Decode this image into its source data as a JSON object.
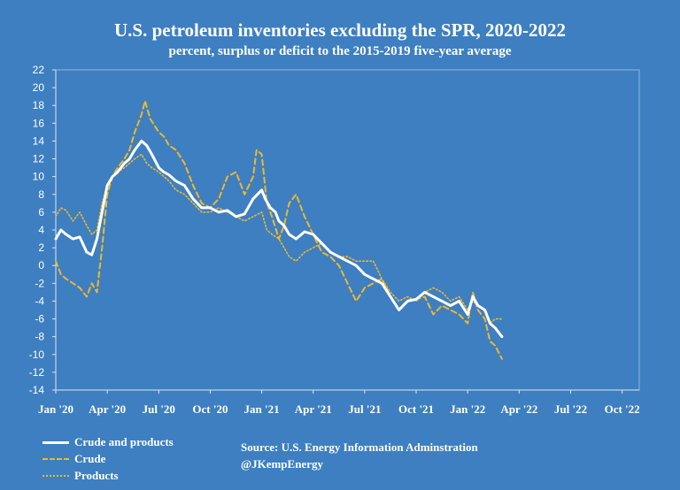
{
  "chart_data": {
    "type": "line",
    "title": "U.S. petroleum inventories excluding the SPR, 2020-2022",
    "subtitle": "percent, surplus or deficit to the 2015-2019 five-year average",
    "ylim": [
      -14,
      22
    ],
    "y_ticks": [
      -14,
      -12,
      -10,
      -8,
      -6,
      -4,
      -2,
      0,
      2,
      4,
      6,
      8,
      10,
      12,
      14,
      16,
      18,
      20,
      22
    ],
    "x_ticks": [
      "Jan '20",
      "Apr '20",
      "Jul '20",
      "Oct '20",
      "Jan '21",
      "Apr '21",
      "Jul '21",
      "Oct '21",
      "Jan '22",
      "Apr '22",
      "Jul '22",
      "Oct '22"
    ],
    "x_unit": "months since Jan 2020",
    "grid": false,
    "legend_position": "bottom-left",
    "series": [
      {
        "name": "Crude and products",
        "color": "#ffffff",
        "style": "solid",
        "x": [
          0,
          0.3,
          0.6,
          1.0,
          1.4,
          1.8,
          2.1,
          2.4,
          2.7,
          3.0,
          3.3,
          3.6,
          4.0,
          4.3,
          4.6,
          5.0,
          5.3,
          5.6,
          6.0,
          6.3,
          6.6,
          7.0,
          7.5,
          8.0,
          8.5,
          9.0,
          9.5,
          10.0,
          10.5,
          11.0,
          11.5,
          12.0,
          12.2,
          12.5,
          12.8,
          13.0,
          13.3,
          13.6,
          14.0,
          14.5,
          15.0,
          15.5,
          16.0,
          16.5,
          17.0,
          17.5,
          18.0,
          18.5,
          19.0,
          19.5,
          20.0,
          20.5,
          21.0,
          21.5,
          22.0,
          22.5,
          23.0,
          23.5,
          24.0,
          24.3,
          24.6,
          25.0,
          25.3,
          25.6,
          26.0
        ],
        "y": [
          3.0,
          4.0,
          3.5,
          3.0,
          3.2,
          1.5,
          1.2,
          3.0,
          6.0,
          9.0,
          10.0,
          10.5,
          11.5,
          12.0,
          13.0,
          14.0,
          13.5,
          12.5,
          11.0,
          10.5,
          10.2,
          9.5,
          9.0,
          7.5,
          6.5,
          6.5,
          6.0,
          6.2,
          5.5,
          5.8,
          7.5,
          8.5,
          7.5,
          6.5,
          6.0,
          5.0,
          4.5,
          3.5,
          3.0,
          3.8,
          3.5,
          2.5,
          1.5,
          1.0,
          0.5,
          0.0,
          -1.0,
          -1.5,
          -2.0,
          -3.5,
          -5.0,
          -4.0,
          -3.8,
          -3.0,
          -3.5,
          -4.0,
          -4.5,
          -4.0,
          -5.5,
          -3.5,
          -4.5,
          -5.0,
          -6.5,
          -7.0,
          -8.0
        ]
      },
      {
        "name": "Crude",
        "color": "#f0b82a",
        "style": "dashed",
        "x": [
          0,
          0.3,
          0.6,
          1.0,
          1.4,
          1.8,
          2.1,
          2.4,
          2.7,
          3.0,
          3.3,
          3.6,
          4.0,
          4.3,
          4.6,
          5.0,
          5.2,
          5.5,
          6.0,
          6.3,
          6.6,
          7.0,
          7.5,
          8.0,
          8.5,
          9.0,
          9.5,
          10.0,
          10.5,
          11.0,
          11.5,
          11.7,
          12.0,
          12.3,
          12.6,
          13.0,
          13.3,
          13.6,
          14.0,
          14.5,
          15.0,
          15.5,
          16.0,
          16.5,
          17.0,
          17.5,
          18.0,
          18.5,
          19.0,
          19.5,
          20.0,
          20.5,
          21.0,
          21.5,
          22.0,
          22.5,
          23.0,
          23.5,
          24.0,
          24.3,
          24.6,
          25.0,
          25.3,
          25.6,
          26.0
        ],
        "y": [
          0.5,
          -1.0,
          -1.5,
          -2.0,
          -2.5,
          -3.5,
          -2.0,
          -3.0,
          2.0,
          8.0,
          10.0,
          11.0,
          12.0,
          13.0,
          15.0,
          17.0,
          18.5,
          16.5,
          15.0,
          14.5,
          13.5,
          13.0,
          11.5,
          9.0,
          7.0,
          6.5,
          7.5,
          10.0,
          10.5,
          8.0,
          10.0,
          13.0,
          12.5,
          7.0,
          5.5,
          3.0,
          4.5,
          7.0,
          8.0,
          5.5,
          3.5,
          1.5,
          1.0,
          0.0,
          -2.0,
          -4.0,
          -2.5,
          -2.0,
          -1.5,
          -3.5,
          -5.0,
          -4.0,
          -3.8,
          -3.5,
          -5.5,
          -4.5,
          -5.0,
          -5.5,
          -6.5,
          -3.0,
          -5.0,
          -6.0,
          -8.5,
          -9.0,
          -10.5
        ]
      },
      {
        "name": "Products",
        "color": "#f0b82a",
        "style": "dotted",
        "x": [
          0,
          0.3,
          0.6,
          1.0,
          1.4,
          1.8,
          2.1,
          2.4,
          2.7,
          3.0,
          3.3,
          3.6,
          4.0,
          4.3,
          4.6,
          5.0,
          5.3,
          5.6,
          6.0,
          6.3,
          6.6,
          7.0,
          7.5,
          8.0,
          8.5,
          9.0,
          9.5,
          10.0,
          10.5,
          11.0,
          11.5,
          12.0,
          12.3,
          12.6,
          13.0,
          13.3,
          13.6,
          14.0,
          14.5,
          15.0,
          15.5,
          16.0,
          16.5,
          17.0,
          17.5,
          18.0,
          18.5,
          19.0,
          19.5,
          20.0,
          20.5,
          21.0,
          21.5,
          22.0,
          22.5,
          23.0,
          23.5,
          24.0,
          24.3,
          24.6,
          25.0,
          25.3,
          25.6,
          26.0
        ],
        "y": [
          5.5,
          6.5,
          6.2,
          5.0,
          6.0,
          4.5,
          3.5,
          4.0,
          7.0,
          9.0,
          10.0,
          10.5,
          11.0,
          11.5,
          12.0,
          12.5,
          11.5,
          11.0,
          10.5,
          10.0,
          9.5,
          8.5,
          8.0,
          7.0,
          6.0,
          6.0,
          6.5,
          6.0,
          5.5,
          5.0,
          5.5,
          6.0,
          4.0,
          3.5,
          3.0,
          2.0,
          1.0,
          0.5,
          1.5,
          2.0,
          2.5,
          1.5,
          1.0,
          1.0,
          0.5,
          0.5,
          0.5,
          -1.5,
          -3.0,
          -4.0,
          -3.5,
          -4.0,
          -3.0,
          -2.5,
          -3.0,
          -4.0,
          -3.5,
          -5.0,
          -4.0,
          -4.5,
          -5.0,
          -6.5,
          -6.0,
          -6.0
        ]
      }
    ]
  },
  "footer": {
    "source": "Source: U.S. Energy Information Adminstration",
    "handle": "@JKempEnergy"
  }
}
